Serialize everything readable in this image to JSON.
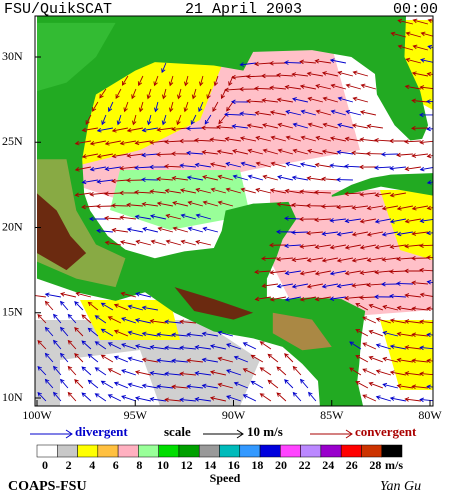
{
  "header": {
    "product": "FSU/QuikSCAT",
    "date": "21 April 2003",
    "time": "00:00"
  },
  "map": {
    "lat_labels": [
      "30N",
      "25N",
      "20N",
      "15N",
      "10N"
    ],
    "lon_labels": [
      "100W",
      "95W",
      "90W",
      "85W",
      "80W"
    ]
  },
  "legend": {
    "divergent": "divergent",
    "scale": "scale",
    "scale_value": "10 m/s",
    "convergent": "convergent"
  },
  "colorbar": {
    "labels": [
      "0",
      "2",
      "4",
      "6",
      "8",
      "10",
      "12",
      "14",
      "16",
      "18",
      "20",
      "22",
      "24",
      "26",
      "28"
    ],
    "unit": "m/s",
    "title": "Speed"
  },
  "footer": {
    "left": "COAPS-FSU",
    "right": "Yan Gu"
  }
}
